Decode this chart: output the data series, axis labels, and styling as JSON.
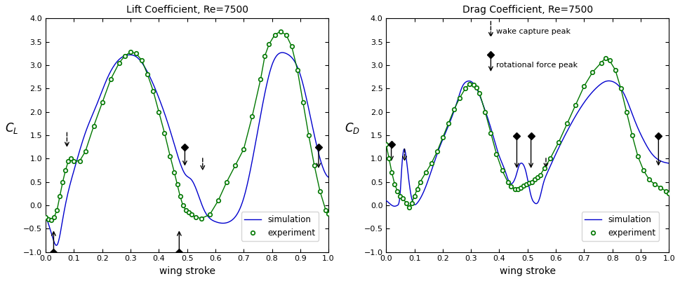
{
  "title_lift": "Lift Coefficient, Re=7500",
  "title_drag": "Drag Coefficient, Re=7500",
  "xlabel": "wing stroke",
  "ylabel_lift": "$C_L$",
  "ylabel_drag": "$C_D$",
  "ylim": [
    -1,
    4
  ],
  "xlim": [
    0,
    1
  ],
  "yticks": [
    -1,
    -0.5,
    0,
    0.5,
    1,
    1.5,
    2,
    2.5,
    3,
    3.5,
    4
  ],
  "xticks": [
    0,
    0.1,
    0.2,
    0.3,
    0.4,
    0.5,
    0.6,
    0.7,
    0.8,
    0.9,
    1.0
  ],
  "sim_color": "#0000cd",
  "exp_color": "#007700",
  "lift_sim_x": [
    0.0,
    0.015,
    0.025,
    0.04,
    0.06,
    0.08,
    0.1,
    0.14,
    0.18,
    0.22,
    0.265,
    0.295,
    0.32,
    0.36,
    0.4,
    0.44,
    0.47,
    0.495,
    0.515,
    0.535,
    0.56,
    0.6,
    0.65,
    0.7,
    0.75,
    0.775,
    0.8,
    0.85,
    0.9,
    0.95,
    0.975,
    1.0
  ],
  "lift_sim_y": [
    -0.25,
    -0.5,
    -0.7,
    -0.85,
    -0.3,
    0.3,
    0.75,
    1.55,
    2.15,
    2.75,
    3.15,
    3.22,
    3.18,
    2.85,
    2.3,
    1.6,
    1.0,
    0.65,
    0.55,
    0.3,
    -0.1,
    -0.35,
    -0.35,
    0.15,
    1.6,
    2.4,
    3.0,
    3.25,
    2.8,
    1.5,
    0.9,
    0.6
  ],
  "lift_exp_x": [
    0.0,
    0.01,
    0.02,
    0.03,
    0.04,
    0.05,
    0.06,
    0.07,
    0.08,
    0.09,
    0.1,
    0.12,
    0.14,
    0.17,
    0.2,
    0.23,
    0.26,
    0.28,
    0.3,
    0.32,
    0.34,
    0.36,
    0.38,
    0.4,
    0.42,
    0.44,
    0.455,
    0.465,
    0.475,
    0.485,
    0.495,
    0.505,
    0.515,
    0.53,
    0.55,
    0.58,
    0.61,
    0.64,
    0.67,
    0.7,
    0.73,
    0.76,
    0.775,
    0.79,
    0.81,
    0.83,
    0.85,
    0.87,
    0.89,
    0.91,
    0.93,
    0.95,
    0.97,
    0.99,
    1.0
  ],
  "lift_exp_y": [
    -0.25,
    -0.3,
    -0.32,
    -0.25,
    -0.1,
    0.2,
    0.5,
    0.75,
    0.95,
    1.0,
    0.95,
    0.95,
    1.15,
    1.7,
    2.2,
    2.7,
    3.05,
    3.2,
    3.28,
    3.25,
    3.1,
    2.8,
    2.45,
    2.0,
    1.55,
    1.05,
    0.7,
    0.45,
    0.2,
    0.0,
    -0.1,
    -0.15,
    -0.2,
    -0.25,
    -0.28,
    -0.2,
    0.1,
    0.5,
    0.85,
    1.2,
    1.9,
    2.7,
    3.2,
    3.45,
    3.65,
    3.72,
    3.65,
    3.4,
    2.9,
    2.2,
    1.5,
    0.85,
    0.3,
    -0.1,
    -0.18
  ],
  "drag_sim_x": [
    0.0,
    0.01,
    0.02,
    0.03,
    0.04,
    0.05,
    0.055,
    0.065,
    0.075,
    0.09,
    0.11,
    0.14,
    0.18,
    0.22,
    0.25,
    0.27,
    0.285,
    0.3,
    0.32,
    0.34,
    0.36,
    0.38,
    0.4,
    0.42,
    0.435,
    0.45,
    0.46,
    0.47,
    0.48,
    0.495,
    0.505,
    0.515,
    0.525,
    0.535,
    0.545,
    0.555,
    0.57,
    0.6,
    0.65,
    0.7,
    0.75,
    0.775,
    0.8,
    0.84,
    0.88,
    0.91,
    0.94,
    0.97,
    1.0
  ],
  "drag_sim_y": [
    0.1,
    0.05,
    0.0,
    -0.02,
    0.0,
    0.3,
    0.8,
    1.2,
    0.8,
    0.15,
    0.05,
    0.4,
    1.1,
    1.7,
    2.2,
    2.55,
    2.65,
    2.65,
    2.5,
    2.2,
    1.85,
    1.45,
    1.05,
    0.75,
    0.5,
    0.5,
    0.65,
    0.85,
    0.9,
    0.7,
    0.4,
    0.15,
    0.05,
    0.05,
    0.2,
    0.45,
    0.7,
    1.1,
    1.7,
    2.2,
    2.55,
    2.65,
    2.65,
    2.4,
    1.8,
    1.4,
    1.1,
    0.95,
    0.9
  ],
  "drag_exp_x": [
    0.0,
    0.01,
    0.02,
    0.03,
    0.04,
    0.05,
    0.06,
    0.07,
    0.08,
    0.09,
    0.1,
    0.11,
    0.12,
    0.14,
    0.16,
    0.18,
    0.2,
    0.22,
    0.24,
    0.26,
    0.28,
    0.295,
    0.31,
    0.32,
    0.33,
    0.35,
    0.37,
    0.39,
    0.41,
    0.43,
    0.44,
    0.455,
    0.465,
    0.475,
    0.485,
    0.495,
    0.505,
    0.515,
    0.525,
    0.535,
    0.545,
    0.56,
    0.58,
    0.61,
    0.64,
    0.67,
    0.7,
    0.73,
    0.76,
    0.775,
    0.79,
    0.81,
    0.83,
    0.85,
    0.87,
    0.89,
    0.91,
    0.93,
    0.95,
    0.97,
    0.99,
    1.0
  ],
  "drag_exp_y": [
    1.3,
    1.0,
    0.7,
    0.45,
    0.3,
    0.2,
    0.15,
    0.05,
    -0.05,
    0.05,
    0.2,
    0.35,
    0.5,
    0.7,
    0.9,
    1.15,
    1.45,
    1.75,
    2.05,
    2.3,
    2.5,
    2.6,
    2.58,
    2.52,
    2.4,
    2.0,
    1.55,
    1.1,
    0.75,
    0.5,
    0.4,
    0.35,
    0.35,
    0.38,
    0.42,
    0.45,
    0.48,
    0.5,
    0.55,
    0.6,
    0.65,
    0.8,
    1.0,
    1.35,
    1.75,
    2.15,
    2.55,
    2.85,
    3.05,
    3.15,
    3.1,
    2.9,
    2.5,
    2.0,
    1.5,
    1.05,
    0.75,
    0.55,
    0.45,
    0.38,
    0.3,
    0.25
  ]
}
